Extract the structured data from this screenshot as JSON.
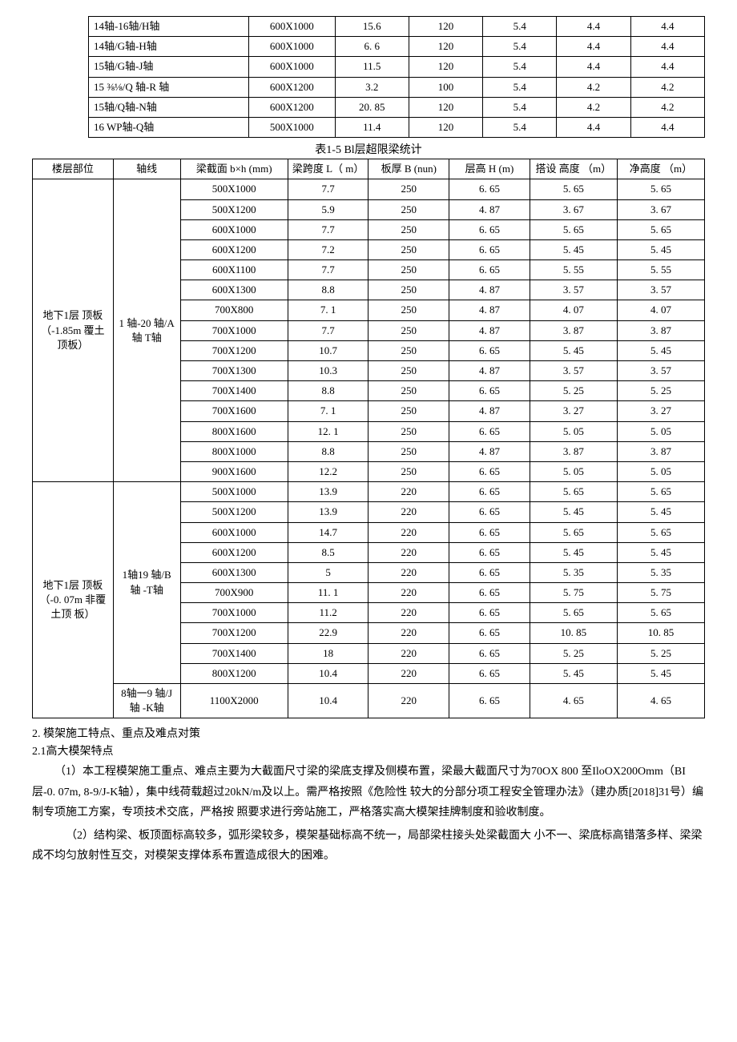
{
  "table1": {
    "rows": [
      [
        "14轴-16轴/H轴",
        "600X1000",
        "15.6",
        "120",
        "5.4",
        "4.4",
        "4.4"
      ],
      [
        "14轴/G轴-H轴",
        "600X1000",
        "6. 6",
        "120",
        "5.4",
        "4.4",
        "4.4"
      ],
      [
        "15轴/G轴-J轴",
        "600X1000",
        "11.5",
        "120",
        "5.4",
        "4.4",
        "4.4"
      ],
      [
        "15 ⅜⅛/Q 轴-R 轴",
        "600X1200",
        "3.2",
        "100",
        "5.4",
        "4.2",
        "4.2"
      ],
      [
        "15轴/Q轴-N轴",
        "600X1200",
        "20. 85",
        "120",
        "5.4",
        "4.2",
        "4.2"
      ],
      [
        "16 WP轴-Q轴",
        "500X1000",
        "11.4",
        "120",
        "5.4",
        "4.4",
        "4.4"
      ]
    ]
  },
  "caption2": "表1-5 Bl层超限梁统计",
  "table2": {
    "headers": [
      "楼层部位",
      "轴线",
      "梁截面  b×h (mm)",
      "梁跨度  L（ m）",
      "板厚  B (nun)",
      "层高  H (m)",
      "搭设  高度 （m）",
      "净高度 （m）"
    ],
    "group1": {
      "loc": "地下1层  顶板（-1.85m 覆土顶板）",
      "axis": "1 轴-20 轴/A轴 T轴",
      "rows": [
        [
          "500X1000",
          "7.7",
          "250",
          "6. 65",
          "5. 65",
          "5. 65"
        ],
        [
          "500X1200",
          "5.9",
          "250",
          "4. 87",
          "3. 67",
          "3. 67"
        ],
        [
          "600X1000",
          "7.7",
          "250",
          "6. 65",
          "5. 65",
          "5. 65"
        ],
        [
          "600X1200",
          "7.2",
          "250",
          "6. 65",
          "5. 45",
          "5. 45"
        ],
        [
          "600X1100",
          "7.7",
          "250",
          "6. 65",
          "5. 55",
          "5. 55"
        ],
        [
          "600X1300",
          "8.8",
          "250",
          "4. 87",
          "3. 57",
          "3. 57"
        ],
        [
          "700X800",
          "7. 1",
          "250",
          "4. 87",
          "4. 07",
          "4. 07"
        ],
        [
          "700X1000",
          "7.7",
          "250",
          "4. 87",
          "3. 87",
          "3. 87"
        ],
        [
          "700X1200",
          "10.7",
          "250",
          "6. 65",
          "5. 45",
          "5. 45"
        ],
        [
          "700X1300",
          "10.3",
          "250",
          "4. 87",
          "3. 57",
          "3. 57"
        ],
        [
          "700X1400",
          "8.8",
          "250",
          "6. 65",
          "5. 25",
          "5. 25"
        ],
        [
          "700X1600",
          "7. 1",
          "250",
          "4. 87",
          "3. 27",
          "3. 27"
        ],
        [
          "800X1600",
          "12. 1",
          "250",
          "6. 65",
          "5. 05",
          "5. 05"
        ],
        [
          "800X1000",
          "8.8",
          "250",
          "4. 87",
          "3. 87",
          "3. 87"
        ],
        [
          "900X1600",
          "12.2",
          "250",
          "6. 65",
          "5. 05",
          "5. 05"
        ]
      ]
    },
    "group2": {
      "loc": "地下1层  顶板（-0. 07m 非覆土顶  板）",
      "axis": "1轴19 轴/B 轴  -T轴",
      "rows": [
        [
          "500X1000",
          "13.9",
          "220",
          "6. 65",
          "5. 65",
          "5. 65"
        ],
        [
          "500X1200",
          "13.9",
          "220",
          "6. 65",
          "5. 45",
          "5. 45"
        ],
        [
          "600X1000",
          "14.7",
          "220",
          "6. 65",
          "5. 65",
          "5. 65"
        ],
        [
          "600X1200",
          "8.5",
          "220",
          "6. 65",
          "5. 45",
          "5. 45"
        ],
        [
          "600X1300",
          "5",
          "220",
          "6. 65",
          "5. 35",
          "5. 35"
        ],
        [
          "700X900",
          "11. 1",
          "220",
          "6. 65",
          "5. 75",
          "5. 75"
        ],
        [
          "700X1000",
          "11.2",
          "220",
          "6. 65",
          "5. 65",
          "5. 65"
        ],
        [
          "700X1200",
          "22.9",
          "220",
          "6. 65",
          "10. 85",
          "10. 85"
        ],
        [
          "700X1400",
          "18",
          "220",
          "6. 65",
          "5. 25",
          "5. 25"
        ],
        [
          "800X1200",
          "10.4",
          "220",
          "6. 65",
          "5. 45",
          "5. 45"
        ]
      ],
      "extra": {
        "axis": "8轴一9 轴/J轴 -K轴",
        "row": [
          "1100X2000",
          "10.4",
          "220",
          "6. 65",
          "4. 65",
          "4. 65"
        ]
      }
    }
  },
  "text": {
    "sec2": "2. 模架施工特点、重点及难点对策",
    "sec21": "2.1高大模架特点",
    "p1": "（1）本工程模架施工重点、难点主要为大截面尺寸梁的梁底支撑及侧模布置，梁最大截面尺寸为70OX 800 至IloOX200Omm（BI层-0. 07m, 8-9/J-K轴），集中线荷载超过20kN/m及以上。需严格按照《危险性  较大的分部分项工程安全管理办法》（建办质[2018]31号）编制专项施工方案，专项技术交底，严格按  照要求进行旁站施工，严格落实高大模架挂牌制度和验收制度。",
    "p2": "（2）结构梁、板顶面标高较多，弧形梁较多，模架基础标高不统一，局部梁柱接头处梁截面大  小不一、梁底标高错落多样、梁梁成不均匀放射性互交，对模架支撑体系布置造成很大的困难。"
  },
  "colwidths": {
    "t1": [
      "26%",
      "14%",
      "12%",
      "12%",
      "12%",
      "12%",
      "12%"
    ],
    "t2": [
      "12%",
      "10%",
      "16%",
      "12%",
      "12%",
      "12%",
      "13%",
      "13%"
    ]
  }
}
